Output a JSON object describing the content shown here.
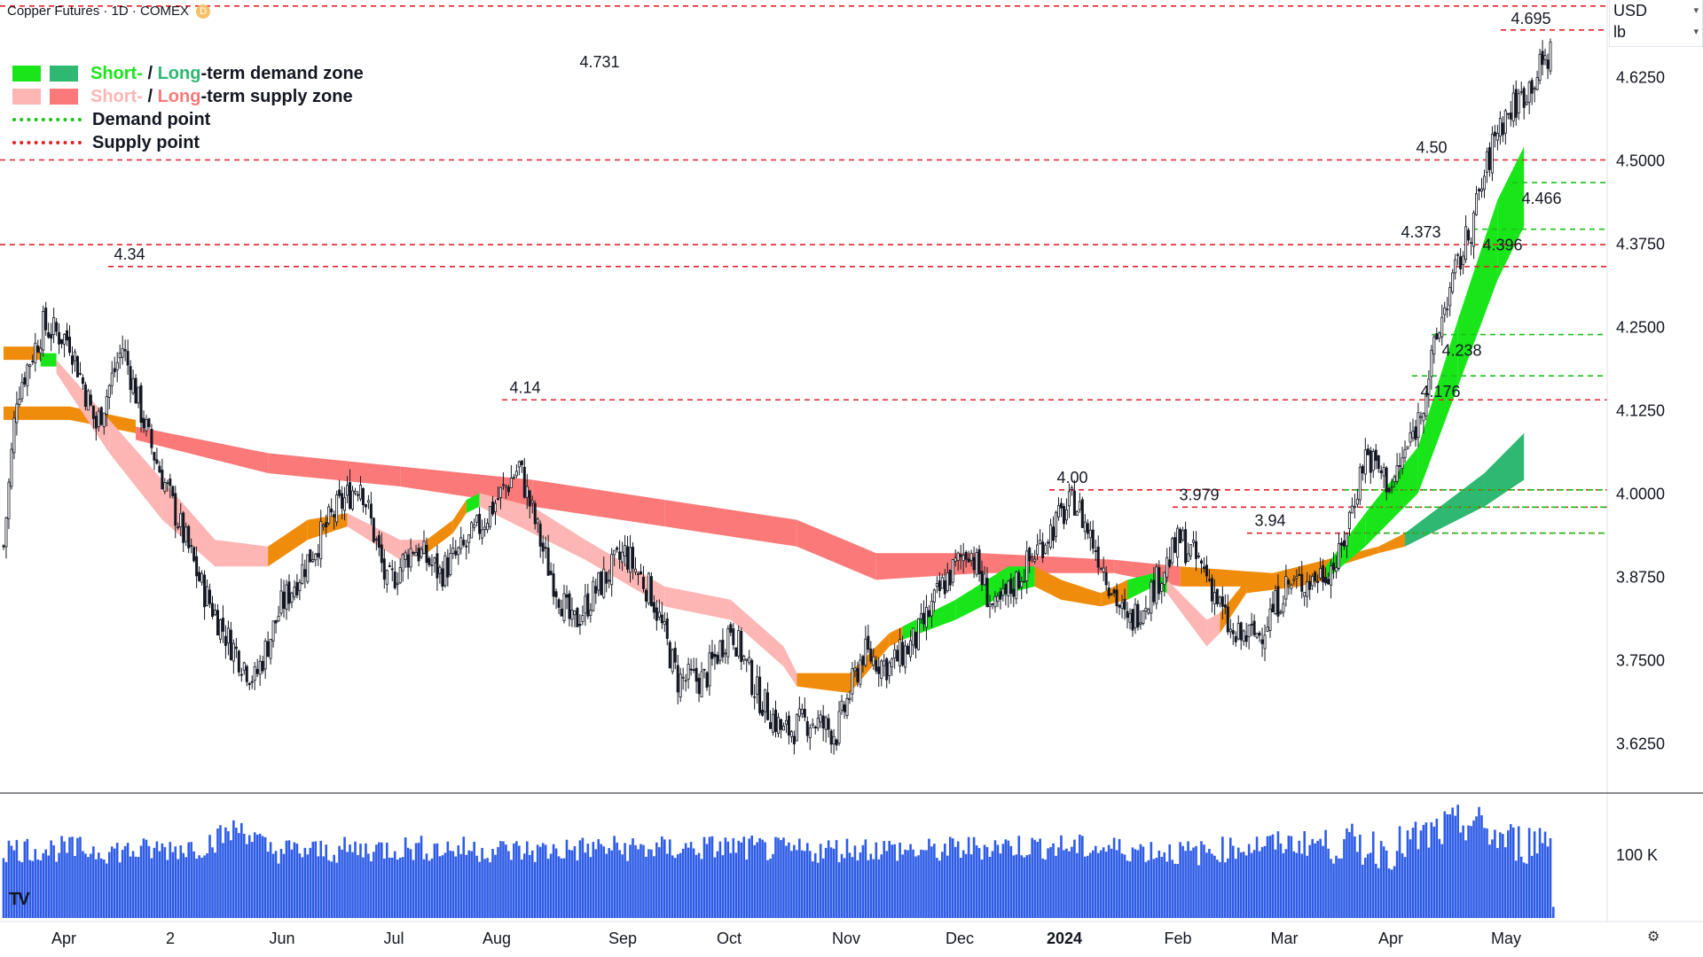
{
  "header": {
    "title": "Copper Futures · 1D · COMEX",
    "badge": "D"
  },
  "units": {
    "currency": "USD",
    "unit": "lb"
  },
  "legend": {
    "demand_short": "Short-",
    "demand_sep": " / ",
    "demand_long": "Long",
    "demand_rest": "-term demand zone",
    "supply_short": "Short-",
    "supply_sep": " / ",
    "supply_long": "Long",
    "supply_rest": "-term supply zone",
    "demand_point": "Demand point",
    "supply_point": "Supply point"
  },
  "colors": {
    "demand_short": "#19e619",
    "demand_long": "#2eb872",
    "supply_short": "#fdb6b4",
    "supply_long": "#fb7a79",
    "demand_point": "#19c219",
    "supply_point": "#e0242b",
    "orange": "#f08c0c",
    "volume": "#2e5ce6",
    "candle_up": "#ffffff",
    "candle_down": "#131722"
  },
  "icons": {
    "logo": "tradingview-logo-icon",
    "settings": "gear-icon"
  },
  "chart_data": {
    "type": "candlestick",
    "title": "Copper Futures · 1D · COMEX",
    "ylim": [
      3.55,
      4.74
    ],
    "yticks": [
      3.625,
      3.75,
      3.875,
      4.0,
      4.125,
      4.25,
      4.375,
      4.5,
      4.625
    ],
    "ytick_labels": [
      "3.6250",
      "3.7500",
      "3.8750",
      "4.0000",
      "4.1250",
      "4.2500",
      "4.3750",
      "4.5000",
      "4.6250"
    ],
    "xlabels": [
      "Apr",
      "2",
      "Jun",
      "Jul",
      "Aug",
      "Sep",
      "Oct",
      "Nov",
      "Dec",
      "2024",
      "Feb",
      "Mar",
      "Apr",
      "May"
    ],
    "volume_tick_label": "100 K",
    "supply_points": [
      {
        "label": "4.731",
        "value": 4.731
      },
      {
        "label": "4.695",
        "value": 4.695
      },
      {
        "label": "4.50",
        "value": 4.5
      },
      {
        "label": "4.373",
        "value": 4.373
      },
      {
        "label": "4.34",
        "value": 4.34
      },
      {
        "label": "4.14",
        "value": 4.14
      },
      {
        "label": "4.00",
        "value": 4.005
      },
      {
        "label": "3.979",
        "value": 3.979
      },
      {
        "label": "3.94",
        "value": 3.94
      }
    ],
    "demand_points": [
      {
        "label": "4.466",
        "value": 4.466
      },
      {
        "label": "4.396",
        "value": 4.396
      },
      {
        "label": "4.238",
        "value": 4.238
      },
      {
        "label": "4.176",
        "value": 4.176
      },
      {
        "label": "",
        "value": 4.005
      },
      {
        "label": "",
        "value": 3.979
      },
      {
        "label": "",
        "value": 3.94
      }
    ],
    "close_anchors": [
      [
        0,
        3.92
      ],
      [
        5,
        4.15
      ],
      [
        15,
        4.25
      ],
      [
        25,
        4.23
      ],
      [
        35,
        4.1
      ],
      [
        45,
        4.22
      ],
      [
        55,
        4.08
      ],
      [
        65,
        3.97
      ],
      [
        75,
        3.86
      ],
      [
        85,
        3.78
      ],
      [
        95,
        3.72
      ],
      [
        105,
        3.83
      ],
      [
        115,
        3.9
      ],
      [
        125,
        3.97
      ],
      [
        135,
        4.02
      ],
      [
        145,
        3.86
      ],
      [
        155,
        3.92
      ],
      [
        165,
        3.88
      ],
      [
        175,
        3.92
      ],
      [
        185,
        3.98
      ],
      [
        195,
        4.04
      ],
      [
        205,
        3.9
      ],
      [
        215,
        3.8
      ],
      [
        225,
        3.86
      ],
      [
        235,
        3.91
      ],
      [
        245,
        3.85
      ],
      [
        255,
        3.72
      ],
      [
        265,
        3.72
      ],
      [
        275,
        3.8
      ],
      [
        285,
        3.7
      ],
      [
        295,
        3.64
      ],
      [
        305,
        3.66
      ],
      [
        315,
        3.64
      ],
      [
        325,
        3.76
      ],
      [
        335,
        3.74
      ],
      [
        345,
        3.78
      ],
      [
        355,
        3.86
      ],
      [
        365,
        3.92
      ],
      [
        375,
        3.82
      ],
      [
        385,
        3.88
      ],
      [
        395,
        3.94
      ],
      [
        405,
        3.99
      ],
      [
        415,
        3.9
      ],
      [
        425,
        3.8
      ],
      [
        435,
        3.86
      ],
      [
        445,
        3.93
      ],
      [
        455,
        3.88
      ],
      [
        465,
        3.78
      ],
      [
        475,
        3.79
      ],
      [
        485,
        3.86
      ],
      [
        495,
        3.87
      ],
      [
        505,
        3.9
      ],
      [
        515,
        4.06
      ],
      [
        525,
        4.01
      ],
      [
        535,
        4.11
      ],
      [
        545,
        4.28
      ],
      [
        555,
        4.4
      ],
      [
        565,
        4.55
      ],
      [
        575,
        4.6
      ],
      [
        585,
        4.66
      ]
    ],
    "volume_anchors": [
      [
        0,
        62
      ],
      [
        25,
        62
      ],
      [
        50,
        60
      ],
      [
        75,
        65
      ],
      [
        90,
        82
      ],
      [
        100,
        61
      ],
      [
        120,
        60
      ],
      [
        150,
        63
      ],
      [
        175,
        62
      ],
      [
        200,
        60
      ],
      [
        225,
        63
      ],
      [
        250,
        62
      ],
      [
        275,
        64
      ],
      [
        300,
        60
      ],
      [
        325,
        63
      ],
      [
        350,
        60
      ],
      [
        375,
        65
      ],
      [
        400,
        64
      ],
      [
        425,
        62
      ],
      [
        450,
        58
      ],
      [
        475,
        66
      ],
      [
        500,
        68
      ],
      [
        525,
        62
      ],
      [
        540,
        75
      ],
      [
        555,
        87
      ],
      [
        565,
        72
      ],
      [
        575,
        66
      ],
      [
        585,
        75
      ]
    ],
    "short_band": [
      [
        0,
        4.2,
        4.22,
        "orange"
      ],
      [
        14,
        4.2,
        4.22,
        "orange"
      ],
      [
        14,
        4.19,
        4.21,
        "demand_short"
      ],
      [
        20,
        4.19,
        4.21,
        "demand_short"
      ],
      [
        20,
        4.18,
        4.2,
        "supply_short"
      ],
      [
        40,
        4.06,
        4.11,
        "supply_short"
      ],
      [
        60,
        3.96,
        4.02,
        "supply_short"
      ],
      [
        80,
        3.89,
        3.93,
        "supply_short"
      ],
      [
        100,
        3.89,
        3.92,
        "orange"
      ],
      [
        115,
        3.93,
        3.96,
        "orange"
      ],
      [
        130,
        3.95,
        3.97,
        "supply_short"
      ],
      [
        150,
        3.9,
        3.93,
        "supply_short"
      ],
      [
        160,
        3.91,
        3.93,
        "orange"
      ],
      [
        170,
        3.94,
        3.96,
        "orange"
      ],
      [
        175,
        3.97,
        3.99,
        "demand_short"
      ],
      [
        180,
        3.98,
        4.0,
        "demand_short"
      ],
      [
        180,
        3.98,
        4.0,
        "supply_short"
      ],
      [
        200,
        3.94,
        3.98,
        "supply_short"
      ],
      [
        220,
        3.9,
        3.93,
        "supply_short"
      ],
      [
        250,
        3.83,
        3.86,
        "supply_short"
      ],
      [
        275,
        3.81,
        3.84,
        "supply_short"
      ],
      [
        295,
        3.74,
        3.77,
        "supply_short"
      ],
      [
        300,
        3.71,
        3.73,
        "orange"
      ],
      [
        320,
        3.7,
        3.73,
        "orange"
      ],
      [
        335,
        3.77,
        3.79,
        "orange"
      ],
      [
        340,
        3.78,
        3.8,
        "demand_short"
      ],
      [
        360,
        3.81,
        3.84,
        "demand_short"
      ],
      [
        380,
        3.85,
        3.89,
        "demand_short"
      ],
      [
        390,
        3.86,
        3.89,
        "orange"
      ],
      [
        400,
        3.84,
        3.87,
        "orange"
      ],
      [
        415,
        3.83,
        3.85,
        "orange"
      ],
      [
        425,
        3.84,
        3.87,
        "demand_short"
      ],
      [
        435,
        3.86,
        3.88,
        "demand_short"
      ],
      [
        440,
        3.85,
        3.87,
        "supply_short"
      ],
      [
        455,
        3.77,
        3.81,
        "supply_short"
      ],
      [
        460,
        3.79,
        3.82,
        "orange"
      ],
      [
        470,
        3.85,
        3.87,
        "orange"
      ],
      [
        490,
        3.86,
        3.88,
        "orange"
      ],
      [
        500,
        3.87,
        3.89,
        "demand_short"
      ],
      [
        515,
        3.92,
        3.97,
        "demand_short"
      ],
      [
        535,
        4.0,
        4.07,
        "demand_short"
      ],
      [
        550,
        4.16,
        4.26,
        "demand_short"
      ],
      [
        565,
        4.32,
        4.44,
        "demand_short"
      ],
      [
        575,
        4.4,
        4.52,
        "demand_short"
      ]
    ],
    "long_band": [
      [
        0,
        4.11,
        4.13,
        "orange"
      ],
      [
        25,
        4.11,
        4.13,
        "orange"
      ],
      [
        50,
        4.09,
        4.11,
        "orange"
      ],
      [
        50,
        4.08,
        4.1,
        "supply_long"
      ],
      [
        100,
        4.03,
        4.06,
        "supply_long"
      ],
      [
        150,
        4.01,
        4.04,
        "supply_long"
      ],
      [
        200,
        3.98,
        4.02,
        "supply_long"
      ],
      [
        250,
        3.95,
        3.99,
        "supply_long"
      ],
      [
        300,
        3.92,
        3.96,
        "supply_long"
      ],
      [
        330,
        3.87,
        3.91,
        "supply_long"
      ],
      [
        370,
        3.88,
        3.91,
        "supply_long"
      ],
      [
        420,
        3.88,
        3.9,
        "supply_long"
      ],
      [
        445,
        3.86,
        3.89,
        "supply_long"
      ],
      [
        445,
        3.86,
        3.89,
        "orange"
      ],
      [
        480,
        3.86,
        3.88,
        "orange"
      ],
      [
        520,
        3.91,
        3.92,
        "orange"
      ],
      [
        530,
        3.92,
        3.94,
        "demand_long"
      ],
      [
        560,
        3.98,
        4.03,
        "demand_long"
      ],
      [
        575,
        4.02,
        4.09,
        "demand_long"
      ]
    ]
  }
}
